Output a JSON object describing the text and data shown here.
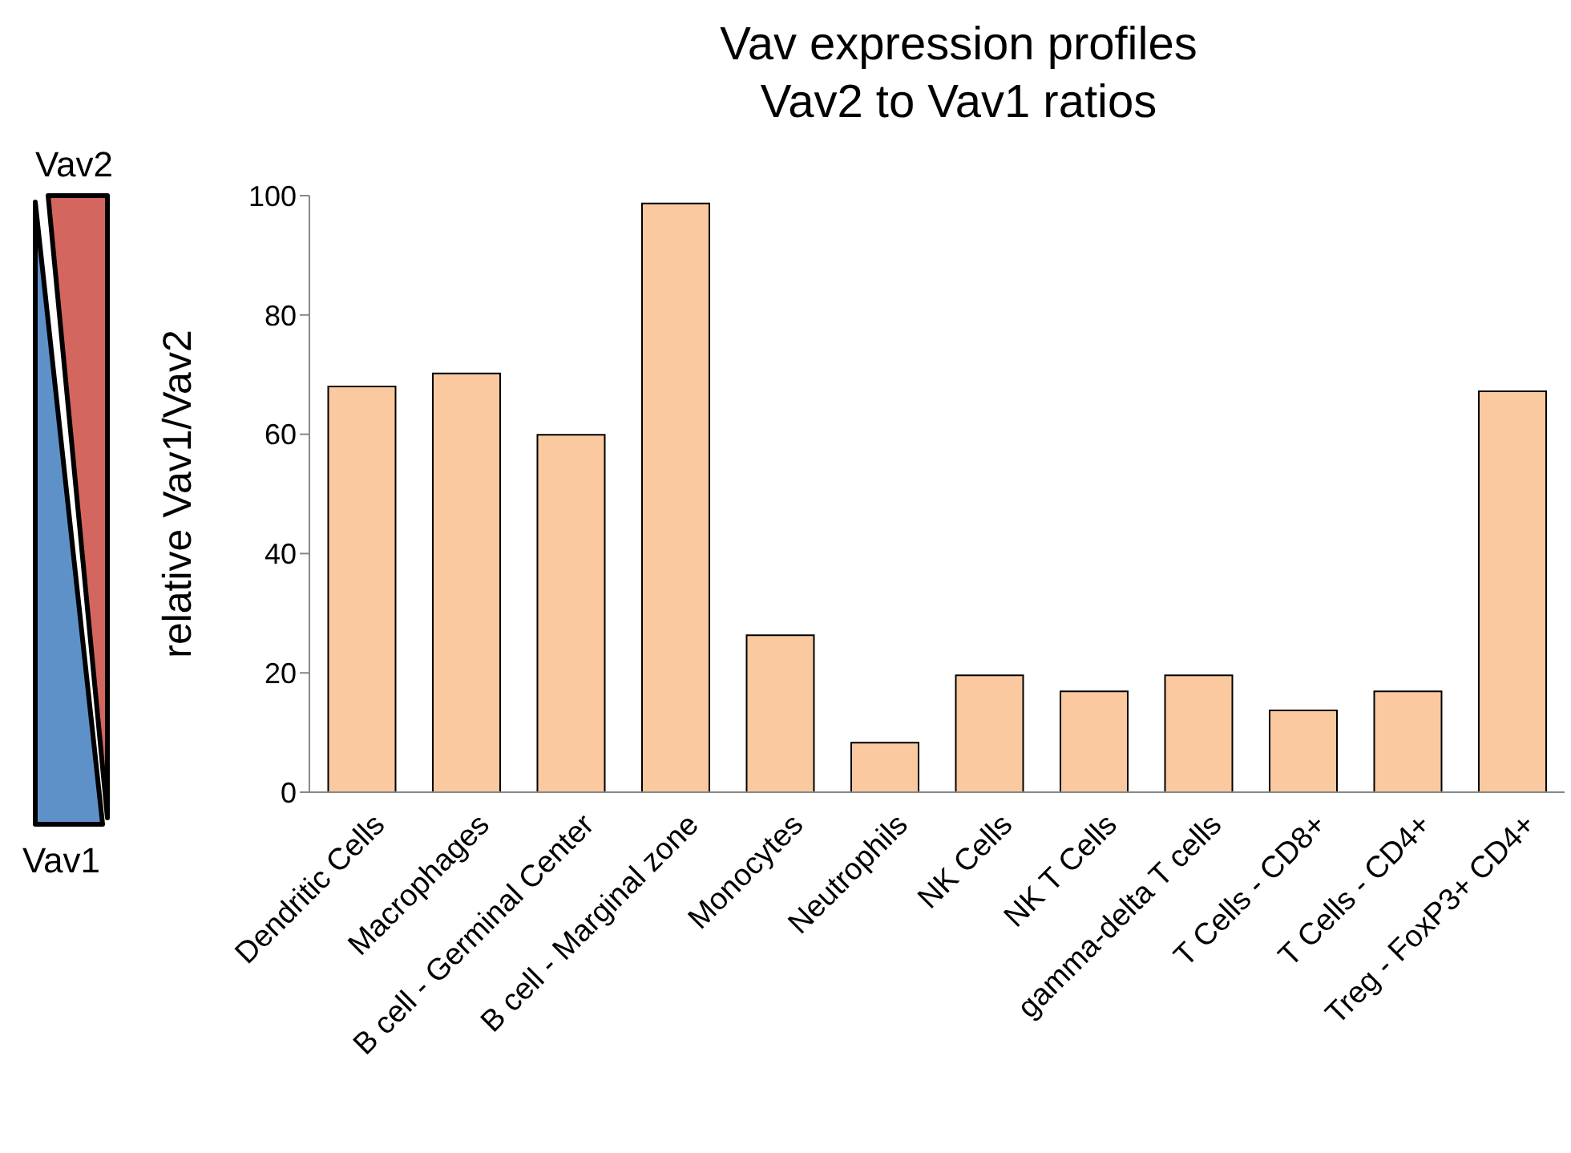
{
  "chart_data": {
    "type": "bar",
    "title": "Vav expression profiles",
    "subtitle": "Vav2 to Vav1 ratios",
    "ylabel": "relative Vav1/Vav2",
    "categories": [
      "Dendritic Cells",
      "Macrophages",
      "B cell - Germinal Center",
      "B cell - Marginal zone",
      "Monocytes",
      "Neutrophils",
      "NK Cells",
      "NK T Cells",
      "gamma-delta T cells",
      "T Cells - CD8+",
      "T Cells - CD4+",
      "Treg - FoxP3+ CD4+"
    ],
    "values": [
      68,
      70.2,
      59.9,
      98.7,
      26.3,
      8.3,
      19.6,
      16.9,
      19.6,
      13.7,
      16.9,
      67.2
    ],
    "color": "#fac99f",
    "ylim": [
      0,
      100
    ],
    "yticks": [
      0,
      20,
      40,
      60,
      80,
      100
    ],
    "grid": false,
    "legend": false,
    "annotations": [
      "Vav2",
      "Vav1"
    ]
  }
}
